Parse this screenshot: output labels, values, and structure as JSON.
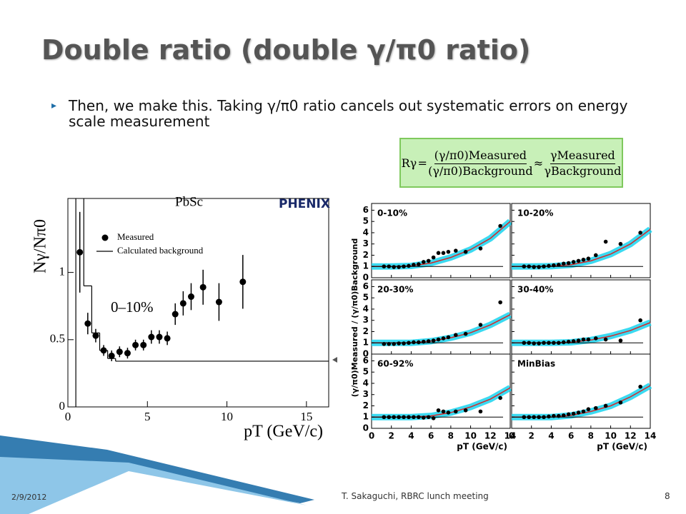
{
  "title": "Double ratio (double γ/π0 ratio)",
  "bullet": "Then, we make this. Taking γ/π0 ratio cancels out systematic errors on energy scale measurement",
  "formula": {
    "lhs": "Rγ",
    "num1": "(γ/π0)Measured",
    "den1": "(γ/π0)Background",
    "num2": "γMeasured",
    "den2": "γBackground"
  },
  "right_figure_ylabel": "(γ/π0)Measured / (γ/π0)Background",
  "footer": {
    "date": "2/9/2012",
    "author": "T. Sakaguchi, RBRC lunch meeting",
    "page": "8"
  },
  "chart_data": [
    {
      "type": "scatter",
      "title": "PbSc",
      "logo": "PHENIX",
      "annotation": "0–10%",
      "xlabel": "pT (GeV/c)",
      "ylabel": "Nγ/Nπ0",
      "xlim": [
        0,
        16.4
      ],
      "ylim": [
        0,
        1.55
      ],
      "xticks": [
        0,
        5,
        10,
        15
      ],
      "yticks": [
        0,
        0.5,
        1
      ],
      "series": [
        {
          "name": "Measured",
          "color": "#000000",
          "x": [
            0.75,
            1.25,
            1.75,
            2.25,
            2.75,
            3.25,
            3.75,
            4.25,
            4.75,
            5.25,
            5.75,
            6.25,
            6.75,
            7.25,
            7.75,
            8.5,
            9.5,
            11
          ],
          "values": [
            1.15,
            0.62,
            0.53,
            0.42,
            0.38,
            0.41,
            0.4,
            0.46,
            0.46,
            0.52,
            0.52,
            0.51,
            0.69,
            0.77,
            0.82,
            0.89,
            0.78,
            0.93
          ],
          "errors": [
            0.3,
            0.08,
            0.05,
            0.04,
            0.04,
            0.04,
            0.04,
            0.04,
            0.04,
            0.05,
            0.05,
            0.05,
            0.08,
            0.09,
            0.1,
            0.13,
            0.14,
            0.2
          ]
        },
        {
          "name": "Calculated background",
          "color": "#000000",
          "type": "step",
          "bins": [
            0.5,
            1,
            1.5,
            2,
            2.5,
            3,
            16.4
          ],
          "values": [
            2.5,
            0.9,
            0.55,
            0.42,
            0.36,
            0.34
          ]
        }
      ]
    },
    {
      "type": "scatter",
      "title": "0-10%",
      "xlim": [
        0,
        14
      ],
      "ylim": [
        0,
        6.6
      ],
      "xticks": [
        0,
        2,
        4,
        6,
        8,
        10,
        12,
        14
      ],
      "yticks": [
        0,
        1,
        2,
        3,
        4,
        5,
        6
      ],
      "hline": 1,
      "series": [
        {
          "color": "#000000",
          "x": [
            1.25,
            1.75,
            2.25,
            2.75,
            3.25,
            3.75,
            4.25,
            4.75,
            5.25,
            5.75,
            6.25,
            6.75,
            7.25,
            7.75,
            8.5,
            9.5,
            11,
            13
          ],
          "values": [
            1,
            1,
            0.95,
            0.95,
            1,
            1.05,
            1.15,
            1.2,
            1.4,
            1.5,
            1.8,
            2.2,
            2.2,
            2.3,
            2.4,
            2.3,
            2.6,
            4.6
          ]
        }
      ],
      "fit": {
        "color": "#d62728",
        "x": [
          0,
          2,
          4,
          6,
          8,
          10,
          12,
          14
        ],
        "values": [
          1,
          1,
          1.05,
          1.3,
          1.8,
          2.5,
          3.5,
          5.0
        ]
      }
    },
    {
      "type": "scatter",
      "title": "10-20%",
      "xlim": [
        0,
        14
      ],
      "ylim": [
        0,
        6.6
      ],
      "xticks": [
        0,
        2,
        4,
        6,
        8,
        10,
        12,
        14
      ],
      "yticks": [
        0,
        1,
        2,
        3,
        4,
        5,
        6
      ],
      "hline": 1,
      "series": [
        {
          "color": "#000000",
          "x": [
            1.25,
            1.75,
            2.25,
            2.75,
            3.25,
            3.75,
            4.25,
            4.75,
            5.25,
            5.75,
            6.25,
            6.75,
            7.25,
            7.75,
            8.5,
            9.5,
            11,
            13
          ],
          "values": [
            1,
            1,
            0.95,
            0.95,
            1,
            1.05,
            1.1,
            1.15,
            1.25,
            1.3,
            1.4,
            1.5,
            1.6,
            1.7,
            2.0,
            3.2,
            3.0,
            4.0
          ]
        }
      ],
      "fit": {
        "color": "#d62728",
        "x": [
          0,
          2,
          4,
          6,
          8,
          10,
          12,
          14
        ],
        "values": [
          1,
          1,
          1.02,
          1.15,
          1.5,
          2.1,
          3.0,
          4.3
        ]
      }
    },
    {
      "type": "scatter",
      "title": "20-30%",
      "xlim": [
        0,
        14
      ],
      "ylim": [
        0,
        6.6
      ],
      "xticks": [
        0,
        2,
        4,
        6,
        8,
        10,
        12,
        14
      ],
      "yticks": [
        0,
        1,
        2,
        3,
        4,
        5,
        6
      ],
      "hline": 1,
      "series": [
        {
          "color": "#000000",
          "x": [
            1.25,
            1.75,
            2.25,
            2.75,
            3.25,
            3.75,
            4.25,
            4.75,
            5.25,
            5.75,
            6.25,
            6.75,
            7.25,
            7.75,
            8.5,
            9.5,
            11,
            13
          ],
          "values": [
            0.9,
            0.9,
            0.9,
            0.95,
            0.95,
            1,
            1.05,
            1.05,
            1.1,
            1.15,
            1.2,
            1.3,
            1.4,
            1.5,
            1.7,
            1.8,
            2.6,
            4.6
          ]
        }
      ],
      "fit": {
        "color": "#d62728",
        "x": [
          0,
          2,
          4,
          6,
          8,
          10,
          12,
          14
        ],
        "values": [
          1,
          1,
          1,
          1.15,
          1.45,
          1.9,
          2.6,
          3.5
        ]
      }
    },
    {
      "type": "scatter",
      "title": "30-40%",
      "xlim": [
        0,
        14
      ],
      "ylim": [
        0,
        6.6
      ],
      "xticks": [
        0,
        2,
        4,
        6,
        8,
        10,
        12,
        14
      ],
      "yticks": [
        0,
        1,
        2,
        3,
        4,
        5,
        6
      ],
      "hline": 1,
      "series": [
        {
          "color": "#000000",
          "x": [
            1.25,
            1.75,
            2.25,
            2.75,
            3.25,
            3.75,
            4.25,
            4.75,
            5.25,
            5.75,
            6.25,
            6.75,
            7.25,
            7.75,
            8.5,
            9.5,
            11,
            13
          ],
          "values": [
            1,
            1,
            0.95,
            0.95,
            1,
            1,
            1,
            1,
            1.05,
            1.1,
            1.15,
            1.2,
            1.3,
            1.3,
            1.4,
            1.3,
            1.2,
            3.0
          ]
        }
      ],
      "fit": {
        "color": "#d62728",
        "x": [
          0,
          2,
          4,
          6,
          8,
          10,
          12,
          14
        ],
        "values": [
          1,
          1,
          1,
          1.05,
          1.25,
          1.6,
          2.1,
          2.8
        ]
      }
    },
    {
      "type": "scatter",
      "title": "60-92%",
      "xlabel": "pT (GeV/c)",
      "xlim": [
        0,
        14
      ],
      "ylim": [
        0,
        6.6
      ],
      "xticks": [
        0,
        2,
        4,
        6,
        8,
        10,
        12,
        14
      ],
      "yticks": [
        0,
        1,
        2,
        3,
        4,
        5,
        6
      ],
      "hline": 1,
      "series": [
        {
          "color": "#000000",
          "x": [
            1.25,
            1.75,
            2.25,
            2.75,
            3.25,
            3.75,
            4.25,
            4.75,
            5.25,
            5.75,
            6.25,
            6.75,
            7.25,
            7.75,
            8.5,
            9.5,
            11,
            13
          ],
          "values": [
            1,
            1,
            1,
            1,
            1,
            1,
            1,
            1,
            0.95,
            1,
            0.9,
            1.6,
            1.5,
            1.4,
            1.5,
            1.6,
            1.5,
            2.7
          ]
        }
      ],
      "fit": {
        "color": "#d62728",
        "x": [
          0,
          2,
          4,
          6,
          8,
          10,
          12,
          14
        ],
        "values": [
          1,
          1,
          1,
          1.1,
          1.4,
          1.9,
          2.6,
          3.6
        ]
      }
    },
    {
      "type": "scatter",
      "title": "MinBias",
      "xlabel": "pT (GeV/c)",
      "xlim": [
        0,
        14
      ],
      "ylim": [
        0,
        6.6
      ],
      "xticks": [
        0,
        2,
        4,
        6,
        8,
        10,
        12,
        14
      ],
      "yticks": [
        0,
        1,
        2,
        3,
        4,
        5,
        6
      ],
      "hline": 1,
      "series": [
        {
          "color": "#000000",
          "x": [
            1.25,
            1.75,
            2.25,
            2.75,
            3.25,
            3.75,
            4.25,
            4.75,
            5.25,
            5.75,
            6.25,
            6.75,
            7.25,
            7.75,
            8.5,
            9.5,
            11,
            13
          ],
          "values": [
            1,
            1,
            1,
            1,
            1,
            1.05,
            1.1,
            1.1,
            1.15,
            1.25,
            1.3,
            1.4,
            1.5,
            1.7,
            1.8,
            2.0,
            2.3,
            3.7
          ]
        }
      ],
      "fit": {
        "color": "#d62728",
        "x": [
          0,
          2,
          4,
          6,
          8,
          10,
          12,
          14
        ],
        "values": [
          1,
          1,
          1,
          1.15,
          1.5,
          2.0,
          2.8,
          3.8
        ]
      }
    }
  ]
}
